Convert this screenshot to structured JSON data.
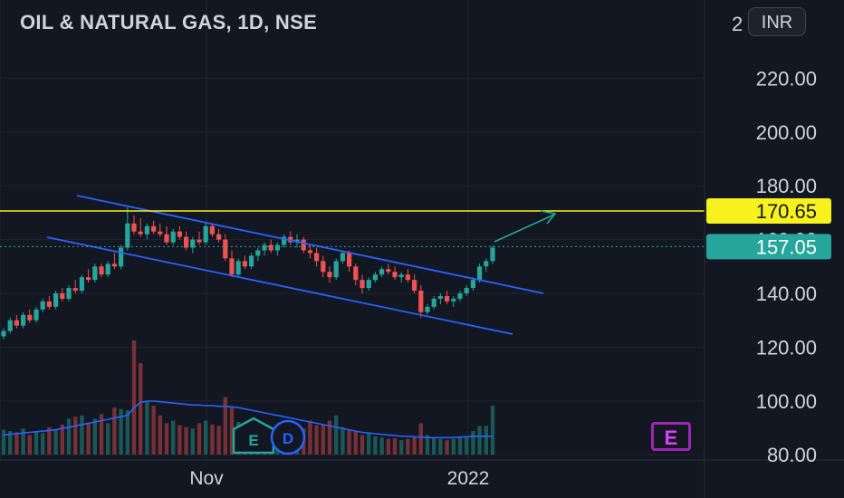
{
  "header": {
    "title": "OIL & NATURAL GAS, 1D, NSE"
  },
  "currency_button": {
    "label": "INR"
  },
  "badges": {
    "earnings_1": "E",
    "dividend": "D",
    "earnings_2": "E"
  },
  "colors": {
    "background": "#131722",
    "up": "#26a69a",
    "down": "#ef5350",
    "channel": "#2962ff",
    "resistance": "#f7f21e",
    "price": "#26a69a",
    "volume_ma": "#2962ff"
  },
  "chart_data": {
    "type": "candlestick",
    "symbol": "OIL & NATURAL GAS",
    "interval": "1D",
    "exchange": "NSE",
    "y_axis": {
      "ticks": [
        "220.00",
        "200.00",
        "180.00",
        "160.00",
        "140.00",
        "120.00",
        "100.00",
        "80.00"
      ],
      "top_partial_label": "2",
      "ylim": [
        80,
        228
      ]
    },
    "x_axis": {
      "ticks": [
        "Nov",
        "2022"
      ]
    },
    "price_labels": [
      {
        "value": "170.65",
        "kind": "resistance"
      },
      {
        "value": "157.05",
        "kind": "last-price"
      }
    ],
    "candles": [
      [
        124,
        127,
        123,
        126
      ],
      [
        126,
        131,
        125,
        130
      ],
      [
        130,
        132,
        127,
        128
      ],
      [
        128,
        133,
        127,
        132
      ],
      [
        132,
        134,
        129,
        130
      ],
      [
        130,
        135,
        129,
        134
      ],
      [
        134,
        138,
        133,
        137
      ],
      [
        137,
        139,
        134,
        135
      ],
      [
        135,
        141,
        134,
        140
      ],
      [
        140,
        142,
        137,
        138
      ],
      [
        138,
        143,
        137,
        142
      ],
      [
        142,
        145,
        140,
        141
      ],
      [
        141,
        147,
        140,
        146
      ],
      [
        146,
        149,
        144,
        145
      ],
      [
        145,
        151,
        144,
        150
      ],
      [
        150,
        151,
        146,
        147
      ],
      [
        147,
        152,
        146,
        151
      ],
      [
        151,
        155,
        149,
        150
      ],
      [
        150,
        158,
        149,
        157
      ],
      [
        157,
        172,
        156,
        166
      ],
      [
        166,
        169,
        162,
        163
      ],
      [
        163,
        168,
        161,
        162
      ],
      [
        162,
        166,
        160,
        165
      ],
      [
        165,
        167,
        162,
        163
      ],
      [
        163,
        166,
        161,
        162
      ],
      [
        162,
        165,
        158,
        159
      ],
      [
        159,
        164,
        158,
        163
      ],
      [
        163,
        165,
        160,
        161
      ],
      [
        161,
        163,
        156,
        157
      ],
      [
        157,
        161,
        155,
        160
      ],
      [
        160,
        163,
        158,
        159
      ],
      [
        159,
        166,
        158,
        165
      ],
      [
        165,
        166,
        161,
        162
      ],
      [
        162,
        164,
        159,
        160
      ],
      [
        160,
        162,
        152,
        153
      ],
      [
        153,
        156,
        146,
        147
      ],
      [
        147,
        153,
        146,
        152
      ],
      [
        152,
        154,
        149,
        150
      ],
      [
        150,
        155,
        149,
        154
      ],
      [
        154,
        157,
        152,
        156
      ],
      [
        156,
        159,
        154,
        158
      ],
      [
        158,
        160,
        155,
        156
      ],
      [
        156,
        159,
        154,
        158
      ],
      [
        158,
        162,
        157,
        161
      ],
      [
        161,
        163,
        158,
        159
      ],
      [
        159,
        162,
        157,
        160
      ],
      [
        160,
        161,
        155,
        156
      ],
      [
        156,
        158,
        153,
        155
      ],
      [
        155,
        157,
        150,
        152
      ],
      [
        152,
        154,
        146,
        148
      ],
      [
        148,
        150,
        144,
        146
      ],
      [
        146,
        153,
        145,
        152
      ],
      [
        152,
        156,
        151,
        155
      ],
      [
        155,
        156,
        148,
        150
      ],
      [
        150,
        151,
        143,
        145
      ],
      [
        145,
        147,
        140,
        142
      ],
      [
        142,
        146,
        141,
        145
      ],
      [
        145,
        148,
        144,
        147
      ],
      [
        147,
        150,
        146,
        149
      ],
      [
        149,
        151,
        147,
        148
      ],
      [
        148,
        150,
        145,
        146
      ],
      [
        146,
        148,
        144,
        147
      ],
      [
        147,
        149,
        144,
        145
      ],
      [
        145,
        147,
        140,
        141
      ],
      [
        141,
        143,
        131,
        133
      ],
      [
        133,
        136,
        132,
        135
      ],
      [
        135,
        139,
        134,
        138
      ],
      [
        138,
        140,
        136,
        139
      ],
      [
        139,
        141,
        136,
        137
      ],
      [
        137,
        139,
        135,
        138
      ],
      [
        138,
        141,
        137,
        140
      ],
      [
        140,
        143,
        139,
        142
      ],
      [
        142,
        146,
        141,
        145
      ],
      [
        145,
        151,
        144,
        150
      ],
      [
        150,
        153,
        148,
        152
      ],
      [
        152,
        158,
        151,
        157
      ]
    ],
    "volume": [
      38,
      36,
      34,
      40,
      30,
      35,
      33,
      42,
      38,
      46,
      55,
      58,
      60,
      48,
      55,
      62,
      48,
      72,
      70,
      68,
      175,
      140,
      82,
      75,
      60,
      48,
      52,
      45,
      42,
      40,
      48,
      52,
      46,
      44,
      88,
      72,
      50,
      45,
      40,
      38,
      36,
      40,
      44,
      50,
      42,
      38,
      40,
      52,
      45,
      46,
      52,
      60,
      42,
      38,
      36,
      30,
      32,
      28,
      26,
      24,
      25,
      22,
      24,
      28,
      48,
      30,
      26,
      24,
      22,
      24,
      26,
      28,
      36,
      44,
      44,
      75
    ],
    "volume_ma": [
      30,
      31,
      32,
      33,
      34,
      35,
      36,
      37,
      38,
      40,
      42,
      44,
      46,
      48,
      50,
      52,
      54,
      56,
      58,
      60,
      72,
      80,
      82,
      82,
      81,
      80,
      79,
      78,
      77,
      76,
      76,
      75,
      75,
      74,
      74,
      73,
      72,
      70,
      68,
      66,
      64,
      62,
      60,
      58,
      56,
      54,
      52,
      50,
      48,
      46,
      44,
      42,
      40,
      38,
      36,
      34,
      33,
      32,
      31,
      30,
      29,
      28,
      28,
      27,
      27,
      26,
      26,
      26,
      26,
      26,
      27,
      27,
      28,
      28,
      28,
      28
    ]
  }
}
